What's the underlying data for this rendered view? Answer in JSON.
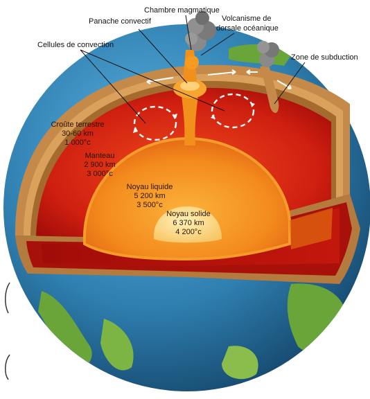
{
  "labels": {
    "chambre": "Chambre magmatique",
    "panache": "Panache convectif",
    "volcanisme_l1": "Volcanisme de",
    "volcanisme_l2": "dorsale océanique",
    "cellules": "Cellules de convection",
    "subduction": "Zone de subduction"
  },
  "layers": {
    "croute": {
      "name": "Croûte terrestre",
      "depth": "30-60 km",
      "temp": "1 000°c"
    },
    "manteau": {
      "name": "Manteau",
      "depth": "2 900 km",
      "temp": "3 000°c"
    },
    "noyau_liquide": {
      "name": "Noyau liquide",
      "depth": "5 200 km",
      "temp": "3 500°c"
    },
    "noyau_solide": {
      "name": "Noyau solide",
      "depth": "6 370 km",
      "temp": "4 200°c"
    }
  },
  "colors": {
    "ocean": "#2f7fb0",
    "land": "#6aa53a",
    "crust": "#b57a3e",
    "mantle_outer": "#b3120c",
    "mantle_inner": "#e6391a",
    "outer_core": "#f2901c",
    "inner_core": "#fbd27a",
    "smoke": "#7a7a7a"
  }
}
